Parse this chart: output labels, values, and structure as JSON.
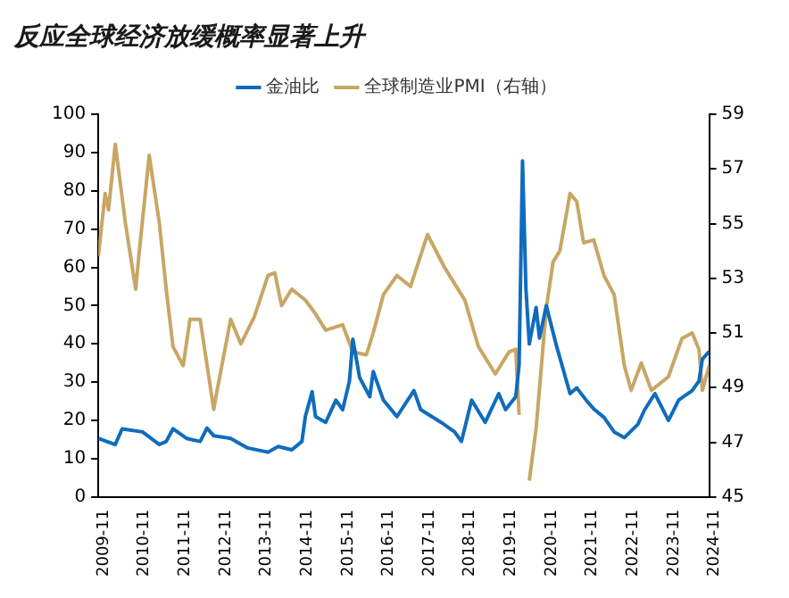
{
  "chart_data": {
    "type": "line",
    "title": "反应全球经济放缓概率显著上升",
    "xlim": [
      "2009-11",
      "2024-11"
    ],
    "xticks": [
      "2009-11",
      "2010-11",
      "2011-11",
      "2012-11",
      "2013-11",
      "2014-11",
      "2015-11",
      "2016-11",
      "2017-11",
      "2018-11",
      "2019-11",
      "2020-11",
      "2021-11",
      "2022-11",
      "2023-11",
      "2024-11"
    ],
    "ylim": [
      0,
      100
    ],
    "yticks": [
      0,
      10,
      20,
      30,
      40,
      50,
      60,
      70,
      80,
      90,
      100
    ],
    "y2lim": [
      45,
      59
    ],
    "y2ticks": [
      45,
      47,
      49,
      51,
      53,
      55,
      57,
      59
    ],
    "legend": "top",
    "grid": false,
    "marker": "none",
    "line_style": "solid",
    "series": [
      {
        "name": "金油比",
        "color": "#0f6cbd",
        "axis": "y",
        "x": [
          "2009-11",
          "2010-04",
          "2010-06",
          "2010-12",
          "2011-05",
          "2011-07",
          "2011-09",
          "2012-01",
          "2012-05",
          "2012-07",
          "2012-09",
          "2013-02",
          "2013-07",
          "2014-01",
          "2014-04",
          "2014-08",
          "2014-11",
          "2014-12",
          "2015-02",
          "2015-03",
          "2015-06",
          "2015-09",
          "2015-11",
          "2016-01",
          "2016-02",
          "2016-04",
          "2016-07",
          "2016-08",
          "2016-11",
          "2017-03",
          "2017-08",
          "2017-10",
          "2018-04",
          "2018-08",
          "2018-10",
          "2019-01",
          "2019-05",
          "2019-09",
          "2019-11",
          "2020-02",
          "2020-03",
          "2020-04",
          "2020-05",
          "2020-06",
          "2020-08",
          "2020-09",
          "2020-11",
          "2021-02",
          "2021-06",
          "2021-08",
          "2021-11",
          "2022-01",
          "2022-04",
          "2022-07",
          "2022-10",
          "2023-02",
          "2023-04",
          "2023-07",
          "2023-11",
          "2024-02",
          "2024-06",
          "2024-08",
          "2024-09",
          "2024-11"
        ],
        "values": [
          15.3,
          13.7,
          17.8,
          17,
          13.7,
          14.5,
          17.8,
          15.3,
          14.5,
          18,
          16,
          15.3,
          12.8,
          11.7,
          13.2,
          12.3,
          14.5,
          21,
          27.5,
          21,
          19.5,
          25.3,
          22.8,
          30.3,
          41.2,
          31.2,
          26.2,
          32.8,
          25.3,
          21,
          27.8,
          22.8,
          19.5,
          17,
          14.5,
          25.3,
          19.5,
          27,
          22.8,
          26.2,
          34.5,
          87.8,
          54.5,
          40,
          49.5,
          41.5,
          50,
          39.5,
          27,
          28.5,
          25,
          23,
          20.8,
          17,
          15.5,
          19,
          22.8,
          27,
          20,
          25.3,
          27.8,
          30.3,
          36,
          38
        ]
      },
      {
        "name": "全球制造业PMI（右轴）",
        "color": "#c8a665",
        "axis": "y2",
        "x": [
          "2009-11",
          "2010-01",
          "2010-02",
          "2010-04",
          "2010-07",
          "2010-10",
          "2010-11",
          "2011-02",
          "2011-05",
          "2011-07",
          "2011-09",
          "2011-12",
          "2012-02",
          "2012-05",
          "2012-09",
          "2012-10",
          "2013-02",
          "2013-05",
          "2013-09",
          "2014-01",
          "2014-03",
          "2014-05",
          "2014-08",
          "2014-12",
          "2015-03",
          "2015-06",
          "2015-11",
          "2016-02",
          "2016-06",
          "2016-08",
          "2016-11",
          "2017-03",
          "2017-07",
          "2017-12",
          "2018-05",
          "2018-11",
          "2019-03",
          "2019-08",
          "2019-12",
          "2020-02",
          "2020-03",
          "2020-04",
          "2020-05",
          "2020-06",
          "2020-08",
          "2020-11",
          "2021-01",
          "2021-03",
          "2021-06",
          "2021-08",
          "2021-10",
          "2022-01",
          "2022-04",
          "2022-07",
          "2022-10",
          "2022-12",
          "2023-03",
          "2023-06",
          "2023-11",
          "2024-03",
          "2024-06",
          "2024-08",
          "2024-09",
          "2024-11"
        ],
        "values": [
          53.8,
          56.1,
          55.5,
          57.9,
          55.0,
          52.6,
          53.9,
          57.5,
          55.0,
          52.6,
          50.5,
          49.8,
          51.5,
          51.5,
          48.2,
          48.9,
          51.5,
          50.6,
          51.6,
          53.1,
          53.2,
          52.0,
          52.6,
          52.2,
          51.7,
          51.1,
          51.3,
          50.3,
          50.2,
          51.0,
          52.4,
          53.1,
          52.7,
          54.6,
          53.4,
          52.2,
          50.5,
          49.5,
          50.3,
          50.4,
          48.0,
          null,
          null,
          45.6,
          47.5,
          51.9,
          53.6,
          54.0,
          56.1,
          55.8,
          54.3,
          54.4,
          53.1,
          52.4,
          49.8,
          48.9,
          49.9,
          48.9,
          49.4,
          50.8,
          51.0,
          50.4,
          48.9,
          49.8
        ]
      }
    ]
  }
}
